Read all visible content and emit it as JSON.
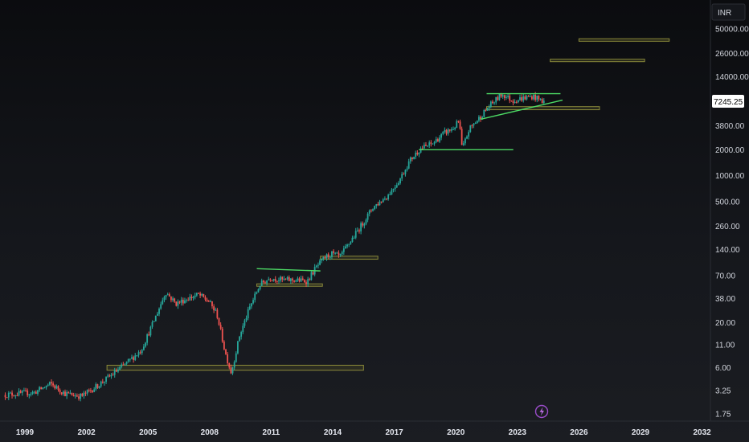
{
  "currency_label": "INR",
  "price_label": "7245.25",
  "colors": {
    "up": "#26a69a",
    "down": "#ef5350",
    "trendline": "#4cd964",
    "zone_stroke": "#8a8a3a",
    "zone_fill": "#3a3a22",
    "price_badge_bg": "#ffffff",
    "price_badge_text": "#000000",
    "badge_icon": "#9c4dcc"
  },
  "badge_icon": "lightning-icon",
  "chart_data": {
    "type": "candlestick",
    "y_scale": "log",
    "x_ticks": [
      "1999",
      "2002",
      "2005",
      "2008",
      "2011",
      "2014",
      "2017",
      "2020",
      "2023",
      "2026",
      "2029",
      "2032"
    ],
    "y_ticks": [
      "50000.00",
      "26000.00",
      "14000.00",
      "7245.25",
      "3800.00",
      "2000.00",
      "1000.00",
      "500.00",
      "260.00",
      "140.00",
      "70.00",
      "38.00",
      "20.00",
      "11.00",
      "6.00",
      "3.25",
      "1.75"
    ],
    "ylim": [
      1.6,
      60000
    ],
    "xlim": [
      1998.0,
      2032.5
    ],
    "price_path": [
      [
        1998.0,
        2.9
      ],
      [
        1999.5,
        3.1
      ],
      [
        2000.3,
        3.9
      ],
      [
        2001.0,
        3.0
      ],
      [
        2001.8,
        2.8
      ],
      [
        2002.5,
        3.6
      ],
      [
        2003.2,
        4.8
      ],
      [
        2004.0,
        6.8
      ],
      [
        2004.7,
        9.5
      ],
      [
        2005.3,
        20
      ],
      [
        2005.9,
        45
      ],
      [
        2006.4,
        33
      ],
      [
        2007.0,
        38
      ],
      [
        2007.5,
        42
      ],
      [
        2008.0,
        35
      ],
      [
        2008.4,
        25
      ],
      [
        2008.8,
        9
      ],
      [
        2009.1,
        5.2
      ],
      [
        2009.5,
        14
      ],
      [
        2010.0,
        30
      ],
      [
        2010.5,
        55
      ],
      [
        2011.0,
        66
      ],
      [
        2011.6,
        62
      ],
      [
        2012.2,
        62
      ],
      [
        2012.8,
        60
      ],
      [
        2013.2,
        85
      ],
      [
        2013.7,
        115
      ],
      [
        2014.0,
        125
      ],
      [
        2014.4,
        115
      ],
      [
        2014.8,
        160
      ],
      [
        2015.5,
        280
      ],
      [
        2016.0,
        430
      ],
      [
        2016.7,
        580
      ],
      [
        2017.3,
        900
      ],
      [
        2017.8,
        1500
      ],
      [
        2018.3,
        2050
      ],
      [
        2018.9,
        2350
      ],
      [
        2019.5,
        3150
      ],
      [
        2019.9,
        3500
      ],
      [
        2020.2,
        4300
      ],
      [
        2020.35,
        2000
      ],
      [
        2020.7,
        3500
      ],
      [
        2021.2,
        4700
      ],
      [
        2021.7,
        6500
      ],
      [
        2022.3,
        8800
      ],
      [
        2022.8,
        7400
      ],
      [
        2023.3,
        7900
      ],
      [
        2023.8,
        8300
      ],
      [
        2024.3,
        7245.25
      ]
    ],
    "support_zones": [
      {
        "x": [
          2003.0,
          2015.5
        ],
        "y": [
          5.6,
          6.4
        ]
      },
      {
        "x": [
          2010.3,
          2013.5
        ],
        "y": [
          53,
          56
        ]
      },
      {
        "x": [
          2013.4,
          2016.2
        ],
        "y": [
          108,
          117
        ]
      },
      {
        "x": [
          2021.5,
          2027.0
        ],
        "y": [
          5800,
          6300
        ]
      },
      {
        "x": [
          2024.6,
          2029.2
        ],
        "y": [
          21000,
          22300
        ]
      },
      {
        "x": [
          2026.0,
          2030.4
        ],
        "y": [
          36000,
          38500
        ]
      }
    ],
    "trendlines": [
      {
        "x": [
          2010.3,
          2013.4
        ],
        "y": [
          84,
          79
        ]
      },
      {
        "x": [
          2018.2,
          2022.8
        ],
        "y": [
          2000,
          2000
        ]
      },
      {
        "x": [
          2021.5,
          2025.1
        ],
        "y": [
          8900,
          8900
        ]
      },
      {
        "x": [
          2021.2,
          2025.2
        ],
        "y": [
          4500,
          7500
        ]
      }
    ]
  }
}
